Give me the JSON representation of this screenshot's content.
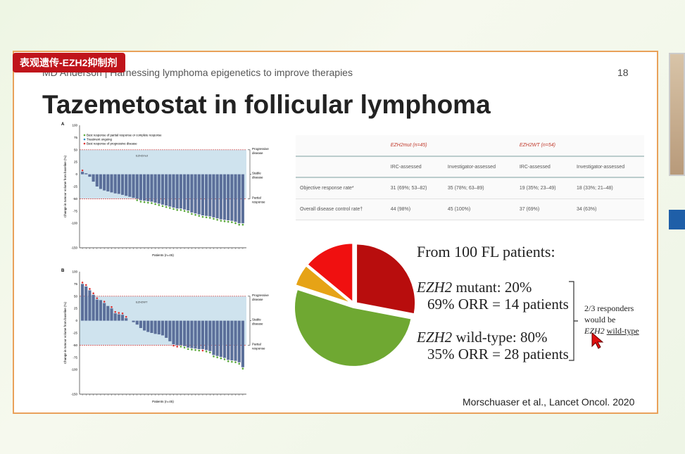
{
  "tag": "表观遗传-EZH2抑制剂",
  "header": "MD Anderson  |  Harnessing lymphoma epigenetics to improve therapies",
  "page_number": "18",
  "title": "Tazemetostat in follicular lymphoma",
  "colors": {
    "accent": "#c0141b",
    "border": "#e9a15a",
    "bar": "#5b6f9a",
    "zone": "#cfe3ee"
  },
  "table": {
    "groups": [
      "EZH2mut (n=45)",
      "EZH2WT (n=54)"
    ],
    "subheaders": [
      "IRC-assessed",
      "Investigator-assessed",
      "IRC-assessed",
      "Investigator-assessed"
    ],
    "rows": [
      {
        "label": "Objective response rate*",
        "cells": [
          "31 (69%; 53–82)",
          "35 (78%; 63–89)",
          "19 (35%; 23–49)",
          "18 (33%; 21–48)"
        ]
      },
      {
        "label": "Overall disease control rate†",
        "cells": [
          "44 (98%)",
          "45 (100%)",
          "37 (69%)",
          "34 (63%)"
        ]
      }
    ]
  },
  "chart_data": [
    {
      "type": "bar",
      "panel": "A",
      "inset_label": "EZH2mut",
      "xlabel": "Patients (n=45)",
      "ylabel": "Change in tumour volume from baseline (%)",
      "ylim": [
        -150,
        100
      ],
      "yticks": [
        100,
        75,
        50,
        25,
        0,
        -25,
        -50,
        -75,
        -100,
        -150
      ],
      "legend": [
        "Best response of partial response or complete response",
        "Treatment ongoing",
        "Best response of progressive disease"
      ],
      "zones": [
        "Progressive disease",
        "Stable disease",
        "Partial response"
      ],
      "thresholds": [
        50,
        -50
      ],
      "values": [
        5,
        2,
        -5,
        -15,
        -25,
        -30,
        -33,
        -35,
        -37,
        -39,
        -40,
        -42,
        -44,
        -46,
        -48,
        -50,
        -53,
        -54,
        -55,
        -56,
        -58,
        -60,
        -62,
        -64,
        -66,
        -68,
        -70,
        -70,
        -72,
        -74,
        -78,
        -80,
        -82,
        -84,
        -85,
        -86,
        -88,
        -90,
        -92,
        -93,
        -94,
        -95,
        -97,
        -100,
        -100
      ],
      "markers": "rnnnnnnnnnnnnnnggggggggggggggggggggggggggggggg"
    },
    {
      "type": "bar",
      "panel": "B",
      "inset_label": "EZH2WT",
      "xlabel": "Patients (n=45)",
      "ylabel": "Change in tumour volume from baseline (%)",
      "ylim": [
        -150,
        100
      ],
      "yticks": [
        100,
        75,
        50,
        25,
        0,
        -25,
        -50,
        -75,
        -100,
        -150
      ],
      "zones": [
        "Progressive disease",
        "Stable disease",
        "Partial response"
      ],
      "thresholds": [
        50,
        -50
      ],
      "values": [
        75,
        70,
        62,
        53,
        43,
        42,
        36,
        30,
        25,
        15,
        13,
        12,
        5,
        0,
        -3,
        -8,
        -15,
        -20,
        -23,
        -25,
        -27,
        -28,
        -30,
        -35,
        -42,
        -48,
        -50,
        -50,
        -52,
        -55,
        -56,
        -57,
        -58,
        -58,
        -60,
        -62,
        -70,
        -72,
        -74,
        -76,
        -80,
        -81,
        -82,
        -85,
        -95
      ],
      "markers": "rrrrrnrnrrrrrnnnnnnnnnnnnrrggggggrggggggggggg"
    },
    {
      "type": "pie",
      "values": [
        28,
        52,
        6,
        14
      ],
      "colors": [
        "#b80d0d",
        "#6fa832",
        "#e6a316",
        "#f01010"
      ]
    }
  ],
  "summary": {
    "heading": "From 100 FL patients:",
    "mut_line1_gene": "EZH2",
    "mut_line1": " mutant: 20%",
    "mut_line2": "69% ORR = 14 patients",
    "wt_line1_gene": "EZH2",
    "wt_line1": " wild-type: 80%",
    "wt_line2": "35% ORR = 28 patients",
    "note1": "2/3 responders",
    "note2": "would be",
    "note3_gene": "EZH2",
    "note3": "wild-type"
  },
  "citation": "Morschuaser et al., Lancet Oncol. 2020"
}
